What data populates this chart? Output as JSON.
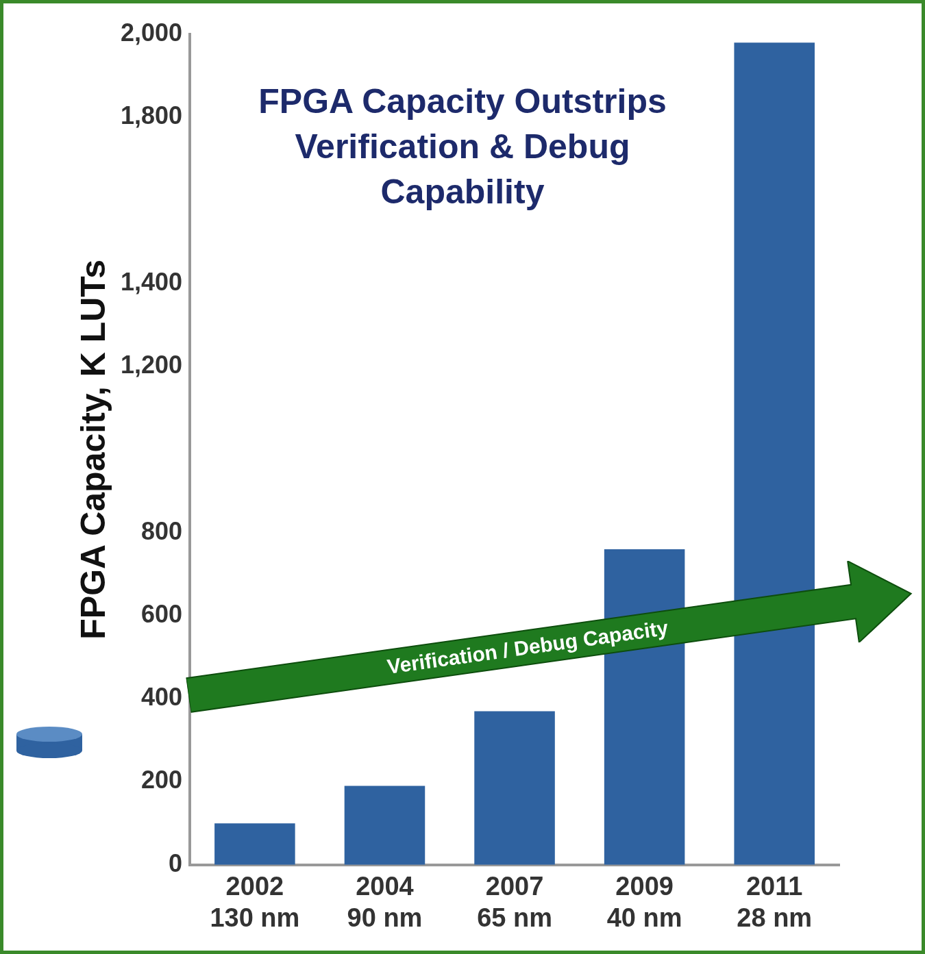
{
  "chart_data": {
    "type": "bar",
    "title": "FPGA Capacity Outstrips Verification & Debug Capability",
    "ylabel": "FPGA Capacity, K LUTs",
    "categories": [
      "2002 130 nm",
      "2004 90 nm",
      "2007 65 nm",
      "2009 40 nm",
      "2011 28 nm"
    ],
    "values": [
      100,
      190,
      370,
      760,
      1980
    ],
    "color": "#2f62a0",
    "ylim": [
      0,
      2000
    ],
    "yticks": [
      0,
      200,
      400,
      600,
      800,
      {
        "value": 1200,
        "label": "1,200"
      },
      {
        "value": 1400,
        "label": "1,400"
      },
      {
        "value": 1800,
        "label": "1,800"
      },
      {
        "value": 2000,
        "label": "2,000"
      }
    ],
    "grid": false,
    "legend": false,
    "annotations": [
      "Verification / Debug Capacity"
    ]
  }
}
